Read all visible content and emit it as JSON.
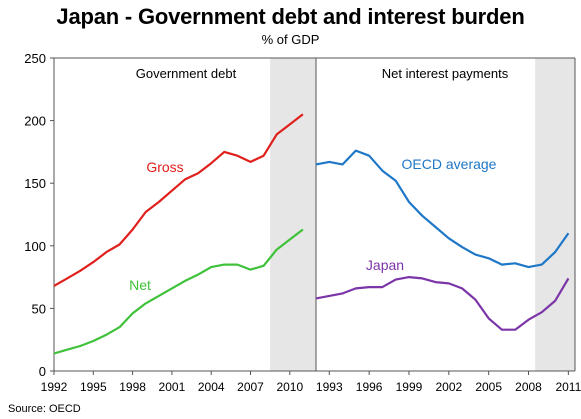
{
  "title": "Japan - Government debt and interest burden",
  "subtitle": "% of GDP",
  "source": "Source: OECD",
  "colors": {
    "gross": "#e0201c",
    "net": "#3fc23a",
    "oecd": "#1f77c8",
    "japan": "#7b35a8",
    "shade": "#e6e6e6",
    "axis": "#555555"
  },
  "chart_data": {
    "type": "line",
    "ylim": [
      0,
      250
    ],
    "yticks": [
      0,
      50,
      100,
      150,
      200,
      250
    ],
    "grid": false,
    "panels": [
      {
        "title": "Government debt",
        "xlim": [
          1992,
          2012
        ],
        "xticks": [
          1992,
          1995,
          1998,
          2001,
          2004,
          2007,
          2010
        ],
        "shaded_from": 2009,
        "series": [
          {
            "name": "Gross",
            "color_key": "gross",
            "x": [
              1992,
              1993,
              1994,
              1995,
              1996,
              1997,
              1998,
              1999,
              2000,
              2001,
              2002,
              2003,
              2004,
              2005,
              2006,
              2007,
              2008,
              2009,
              2010,
              2011
            ],
            "y": [
              68,
              74,
              80,
              87,
              95,
              101,
              113,
              127,
              135,
              144,
              153,
              158,
              166,
              175,
              172,
              167,
              172,
              189,
              197,
              205
            ]
          },
          {
            "name": "Net",
            "color_key": "net",
            "x": [
              1992,
              1993,
              1994,
              1995,
              1996,
              1997,
              1998,
              1999,
              2000,
              2001,
              2002,
              2003,
              2004,
              2005,
              2006,
              2007,
              2008,
              2009,
              2010,
              2011
            ],
            "y": [
              14,
              17,
              20,
              24,
              29,
              35,
              46,
              54,
              60,
              66,
              72,
              77,
              83,
              85,
              85,
              81,
              84,
              97,
              105,
              113
            ]
          }
        ]
      },
      {
        "title": "Net interest payments",
        "xlim": [
          1992,
          2011.5
        ],
        "xticks": [
          1993,
          1996,
          1999,
          2002,
          2005,
          2008,
          2011
        ],
        "shaded_from": 2009,
        "series": [
          {
            "name": "OECD average",
            "color_key": "oecd",
            "x": [
              1992,
              1993,
              1994,
              1995,
              1996,
              1997,
              1998,
              1999,
              2000,
              2001,
              2002,
              2003,
              2004,
              2005,
              2006,
              2007,
              2008,
              2009,
              2010,
              2011
            ],
            "y": [
              165,
              167,
              165,
              176,
              172,
              160,
              152,
              135,
              124,
              115,
              106,
              99,
              93,
              90,
              85,
              86,
              83,
              85,
              95,
              110
            ]
          },
          {
            "name": "Japan",
            "color_key": "japan",
            "x": [
              1992,
              1993,
              1994,
              1995,
              1996,
              1997,
              1998,
              1999,
              2000,
              2001,
              2002,
              2003,
              2004,
              2005,
              2006,
              2007,
              2008,
              2009,
              2010,
              2011
            ],
            "y": [
              58,
              60,
              62,
              66,
              67,
              67,
              73,
              75,
              74,
              71,
              70,
              66,
              57,
              42,
              33,
              33,
              41,
              47,
              56,
              74
            ]
          }
        ]
      }
    ]
  }
}
